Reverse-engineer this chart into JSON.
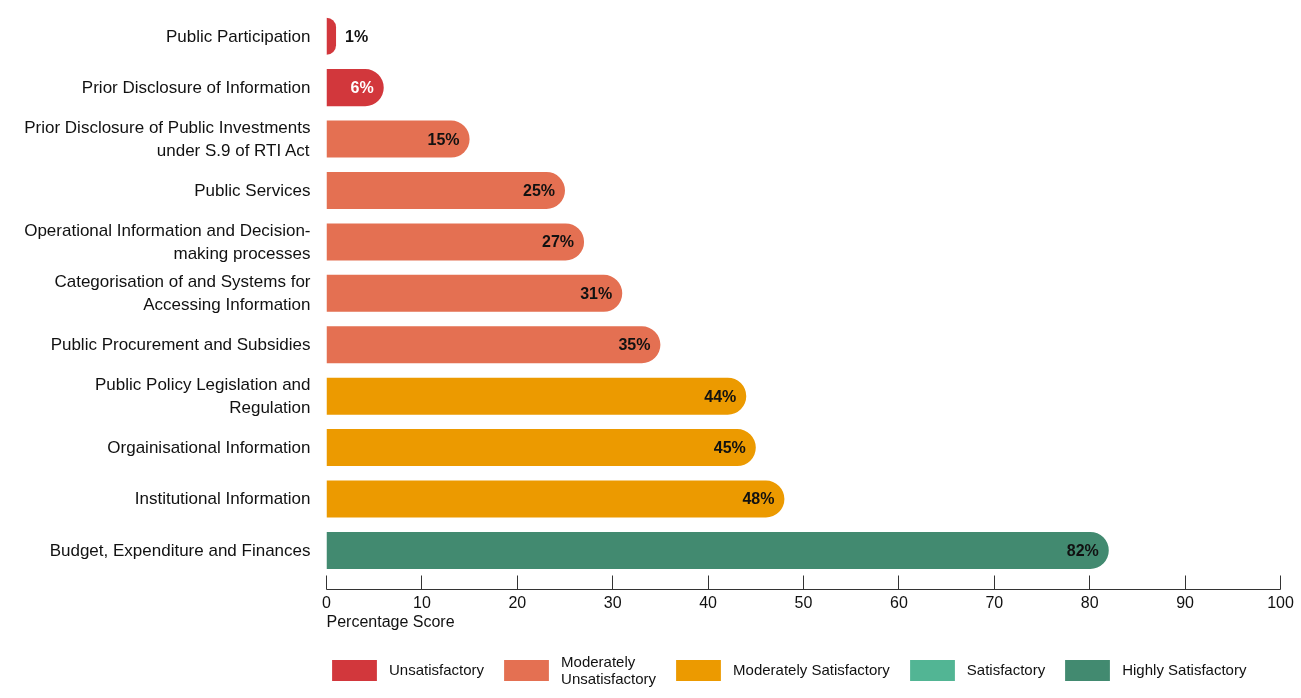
{
  "chart_data": {
    "type": "bar",
    "orientation": "horizontal",
    "stacked": true,
    "categories": [
      "Public Participation",
      "Prior Disclosure of Information",
      "Prior Disclosure of Public Investments under S.9 of RTI Act",
      "Public Services",
      "Operational Information and Decision-making processes",
      "Categorisation of and Systems for Accessing Information",
      "Public Procurement and Subsidies",
      "Public Policy Legislation and Regulation",
      "Orgainisational Information",
      "Institutional Information",
      "Budget, Expenditure and Finances"
    ],
    "series": [
      {
        "name": "Unsatisfactory",
        "color": "#d2373c",
        "values": [
          1,
          6,
          null,
          null,
          null,
          null,
          null,
          null,
          null,
          null,
          null
        ],
        "value_labels": [
          "1%",
          "6%",
          null,
          null,
          null,
          null,
          null,
          null,
          null,
          null,
          null
        ]
      },
      {
        "name": "Moderately Unsatisfactory",
        "color": "#e47052",
        "values": [
          null,
          null,
          15,
          25,
          27,
          31,
          35,
          null,
          null,
          null,
          null
        ],
        "value_labels": [
          null,
          null,
          "15%",
          "25%",
          "27%",
          "31%",
          "35%",
          null,
          null,
          null,
          null
        ]
      },
      {
        "name": "Moderately Satisfactory",
        "color": "#ec9a00",
        "values": [
          null,
          null,
          null,
          null,
          null,
          null,
          null,
          44,
          45,
          48,
          null
        ],
        "value_labels": [
          null,
          null,
          null,
          null,
          null,
          null,
          null,
          "44%",
          "45%",
          "48%",
          null
        ]
      },
      {
        "name": "Satisfactory",
        "color": "#52b594",
        "values": [
          null,
          null,
          null,
          null,
          null,
          null,
          null,
          null,
          null,
          null,
          null
        ]
      },
      {
        "name": "Highly Satisfactory",
        "color": "#428a70",
        "values": [
          null,
          null,
          null,
          null,
          null,
          null,
          null,
          null,
          null,
          null,
          82
        ],
        "value_labels": [
          null,
          null,
          null,
          null,
          null,
          null,
          null,
          null,
          null,
          null,
          "82%"
        ]
      }
    ],
    "xlabel": "Percentage Score",
    "xlim": [
      0,
      100
    ],
    "xticks": [
      0,
      10,
      20,
      30,
      40,
      50,
      60,
      70,
      80,
      90,
      100
    ],
    "legend": "bottom"
  }
}
